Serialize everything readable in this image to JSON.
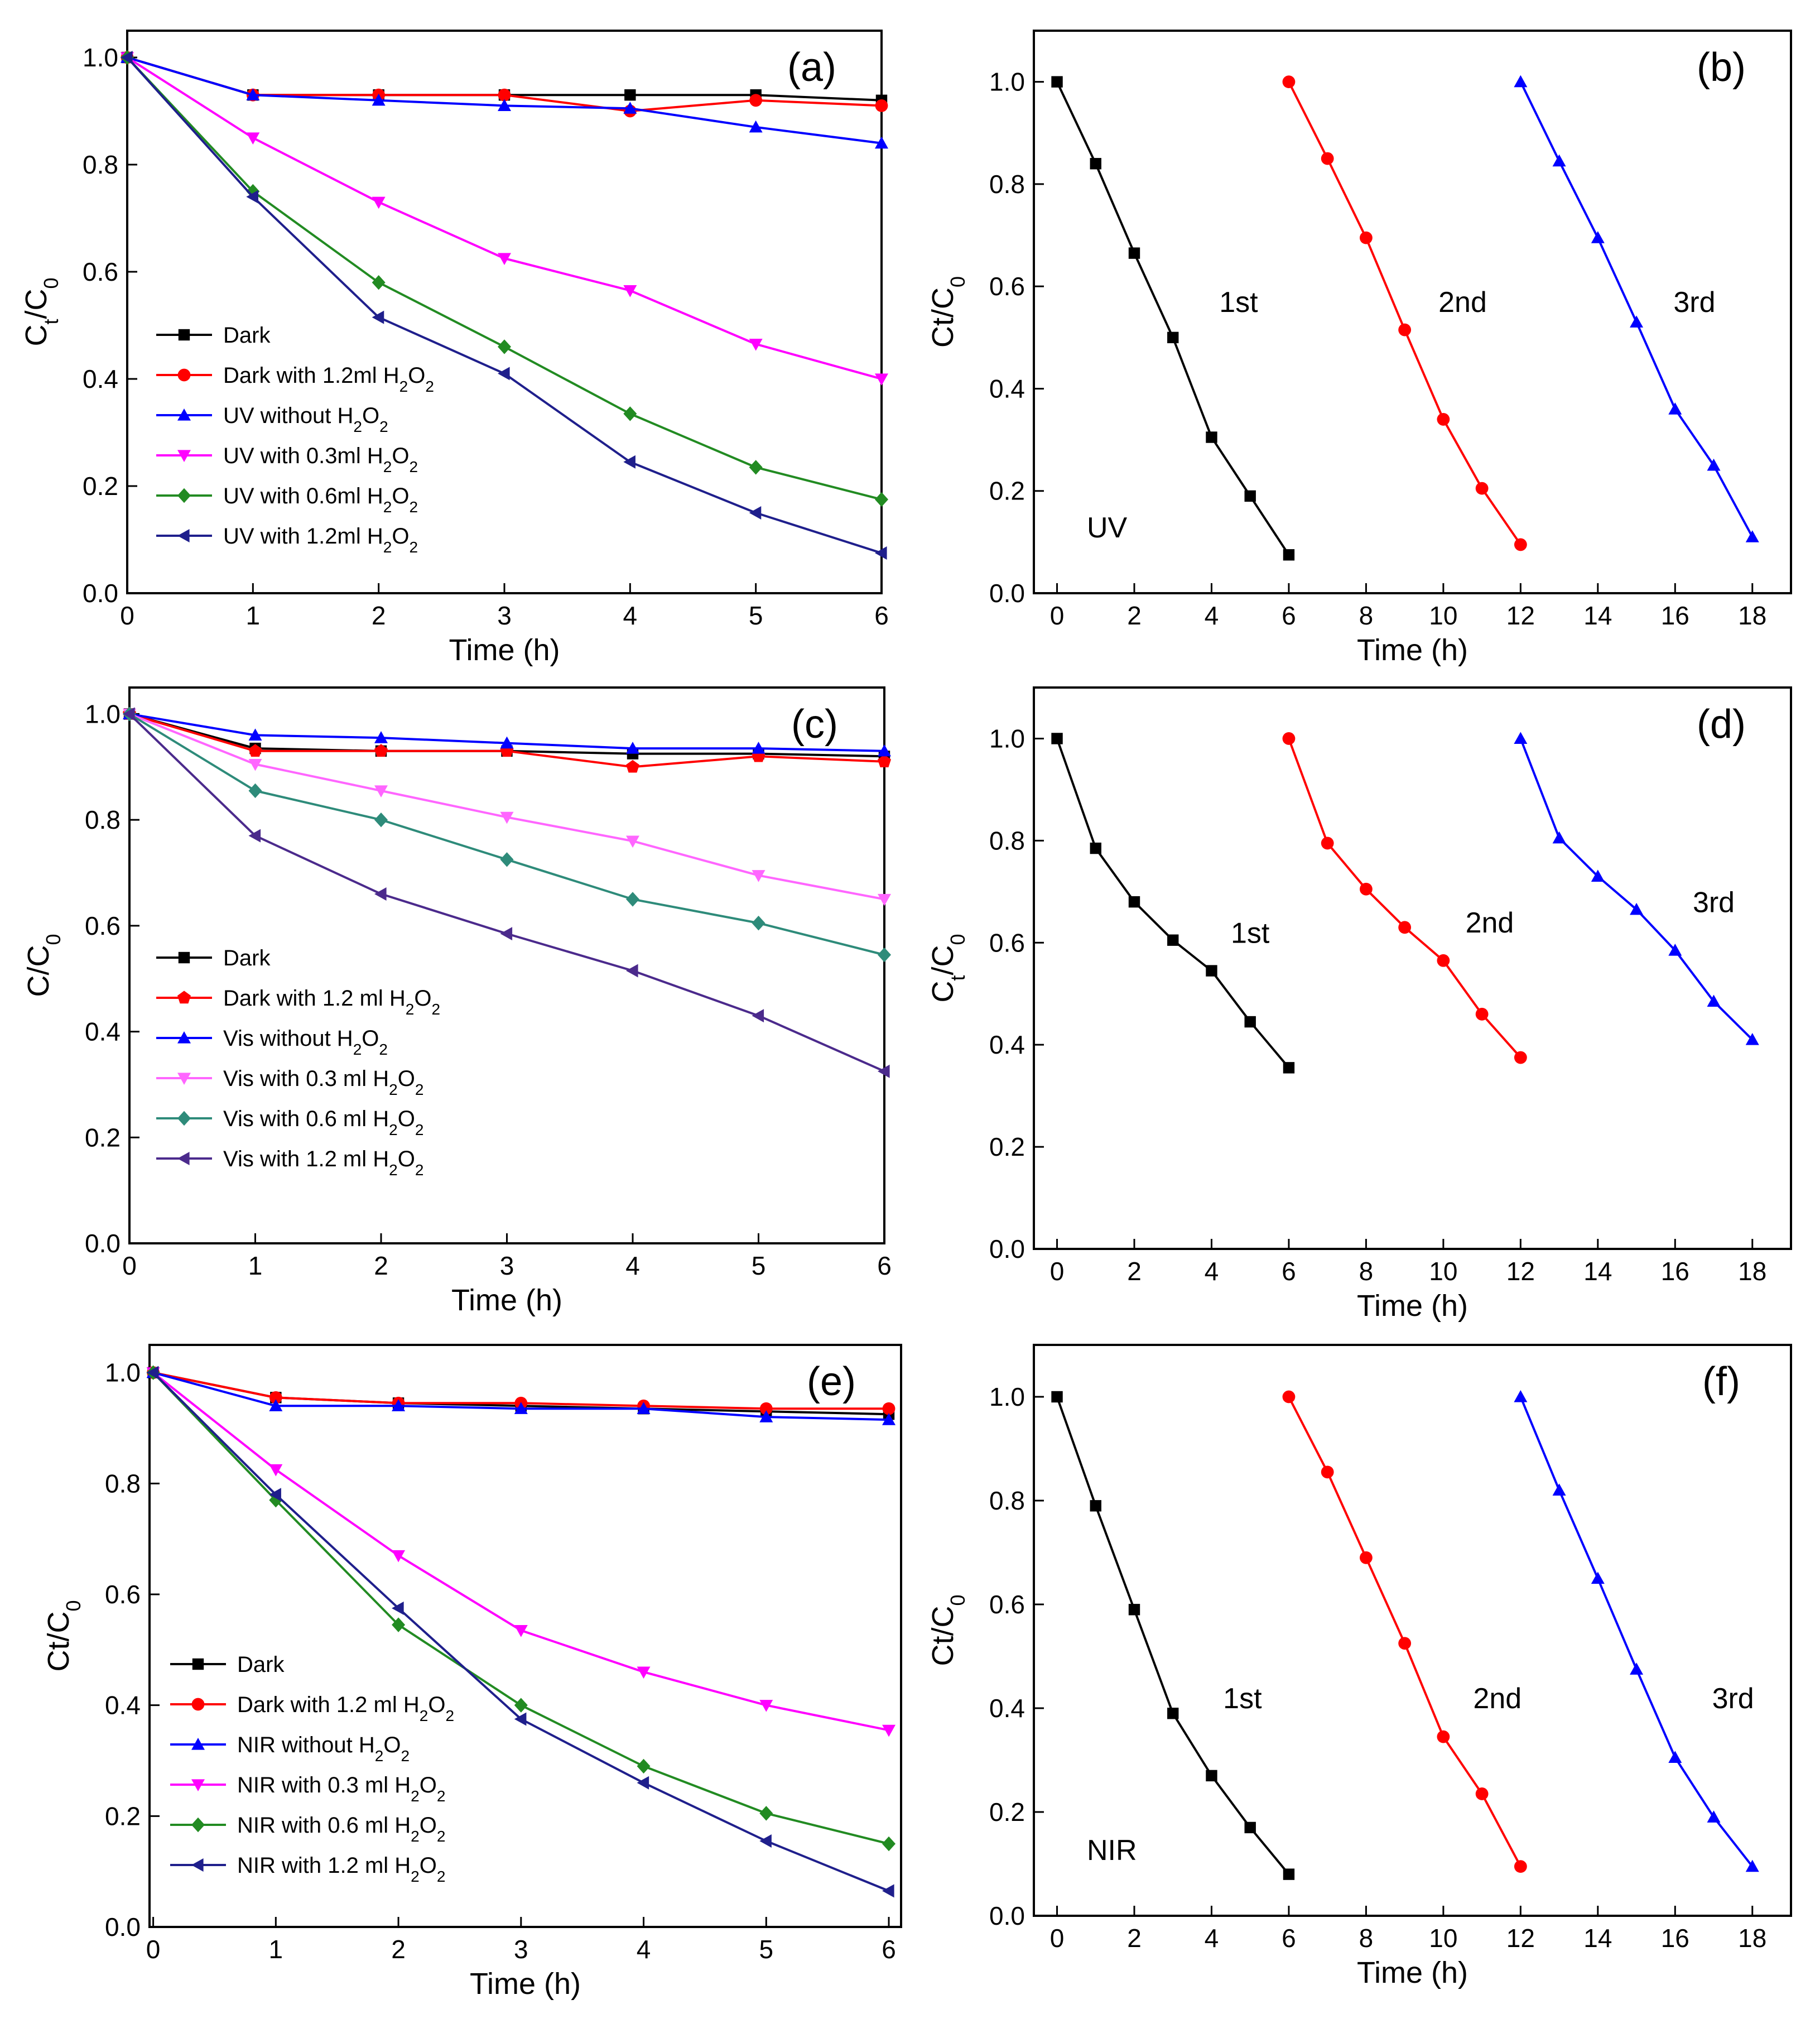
{
  "chart_data": [
    {
      "type": "line",
      "panel": "(a)",
      "xlabel": "Time (h)",
      "ylabel": {
        "main": "C",
        "sub1": "t",
        "sep": "/C",
        "sub2": "0"
      },
      "xlim": [
        0,
        6
      ],
      "ylim": [
        0,
        1.05
      ],
      "xticks": [
        0,
        1,
        2,
        3,
        4,
        5,
        6
      ],
      "yticks": [
        0.0,
        0.2,
        0.4,
        0.6,
        0.8,
        1.0
      ],
      "ytick_labels": [
        "0.0",
        "0.2",
        "0.4",
        "0.6",
        "0.8",
        "1.0"
      ],
      "legend": "lower-left",
      "series": [
        {
          "name": "Dark",
          "label": {
            "text": "Dark"
          },
          "color": "#000000",
          "marker": "square",
          "x": [
            0,
            1,
            2,
            3,
            4,
            5,
            6
          ],
          "values": [
            1.0,
            0.93,
            0.93,
            0.93,
            0.93,
            0.93,
            0.92
          ]
        },
        {
          "name": "Dark with 1.2ml H2O2",
          "label": {
            "text": "Dark with 1.2ml H",
            "s1": "2",
            "mid": "O",
            "s2": "2"
          },
          "color": "#ff0000",
          "marker": "circle",
          "x": [
            0,
            1,
            2,
            3,
            4,
            5,
            6
          ],
          "values": [
            1.0,
            0.93,
            0.93,
            0.93,
            0.9,
            0.92,
            0.91
          ]
        },
        {
          "name": "UV without H2O2",
          "label": {
            "text": "UV without H",
            "s1": "2",
            "mid": "O",
            "s2": "2"
          },
          "color": "#0000ff",
          "marker": "triangle-up",
          "x": [
            0,
            1,
            2,
            3,
            4,
            5,
            6
          ],
          "values": [
            1.0,
            0.93,
            0.92,
            0.91,
            0.905,
            0.87,
            0.84
          ]
        },
        {
          "name": "UV with 0.3ml H2O2",
          "label": {
            "text": "UV with 0.3ml H",
            "s1": "2",
            "mid": "O",
            "s2": "2"
          },
          "color": "#ff00ff",
          "marker": "triangle-down",
          "x": [
            0,
            1,
            2,
            3,
            4,
            5,
            6
          ],
          "values": [
            1.0,
            0.85,
            0.73,
            0.625,
            0.565,
            0.465,
            0.4
          ]
        },
        {
          "name": "UV with 0.6ml H2O2",
          "label": {
            "text": "UV with 0.6ml H",
            "s1": "2",
            "mid": "O",
            "s2": "2"
          },
          "color": "#228b22",
          "marker": "diamond",
          "x": [
            0,
            1,
            2,
            3,
            4,
            5,
            6
          ],
          "values": [
            1.0,
            0.75,
            0.58,
            0.46,
            0.335,
            0.235,
            0.175
          ]
        },
        {
          "name": "UV with 1.2ml H2O2",
          "label": {
            "text": "UV with 1.2ml H",
            "s1": "2",
            "mid": "O",
            "s2": "2"
          },
          "color": "#1f1f8c",
          "marker": "triangle-left",
          "x": [
            0,
            1,
            2,
            3,
            4,
            5,
            6
          ],
          "values": [
            1.0,
            0.74,
            0.515,
            0.41,
            0.245,
            0.15,
            0.075
          ]
        }
      ]
    },
    {
      "type": "line",
      "panel": "(b)",
      "xlabel": "Time (h)",
      "ylabel": {
        "main": "Ct/C",
        "sub1": "",
        "sep": "",
        "sub2": "0"
      },
      "xlim": [
        -0.6,
        19
      ],
      "ylim": [
        0,
        1.1
      ],
      "xticks": [
        0,
        2,
        4,
        6,
        8,
        10,
        12,
        14,
        16,
        18
      ],
      "yticks": [
        0.0,
        0.2,
        0.4,
        0.6,
        0.8,
        1.0
      ],
      "ytick_labels": [
        "0.0",
        "0.2",
        "0.4",
        "0.6",
        "0.8",
        "1.0"
      ],
      "condition_label": "UV",
      "annotations": [
        {
          "text": "1st",
          "x": 4.7,
          "y": 0.55
        },
        {
          "text": "2nd",
          "x": 10.5,
          "y": 0.55
        },
        {
          "text": "3rd",
          "x": 16.5,
          "y": 0.55
        }
      ],
      "series": [
        {
          "name": "1st",
          "color": "#000000",
          "marker": "square",
          "x": [
            0,
            1,
            2,
            3,
            4,
            5,
            6
          ],
          "values": [
            1.0,
            0.84,
            0.665,
            0.5,
            0.305,
            0.19,
            0.075
          ]
        },
        {
          "name": "2nd",
          "color": "#ff0000",
          "marker": "circle",
          "x": [
            6,
            7,
            8,
            9,
            10,
            11,
            12
          ],
          "values": [
            1.0,
            0.85,
            0.695,
            0.515,
            0.34,
            0.205,
            0.095
          ]
        },
        {
          "name": "3rd",
          "color": "#0000ff",
          "marker": "triangle-up",
          "x": [
            12,
            13,
            14,
            15,
            16,
            17,
            18
          ],
          "values": [
            1.0,
            0.845,
            0.695,
            0.53,
            0.36,
            0.25,
            0.11
          ]
        }
      ]
    },
    {
      "type": "line",
      "panel": "(c)",
      "xlabel": "Time (h)",
      "ylabel": {
        "main": "C/C",
        "sub1": "",
        "sep": "",
        "sub2": "0"
      },
      "xlim": [
        0,
        6
      ],
      "ylim": [
        0,
        1.05
      ],
      "xticks": [
        0,
        1,
        2,
        3,
        4,
        5,
        6
      ],
      "yticks": [
        0.0,
        0.2,
        0.4,
        0.6,
        0.8,
        1.0
      ],
      "ytick_labels": [
        "0.0",
        "0.2",
        "0.4",
        "0.6",
        "0.8",
        "1.0"
      ],
      "legend": "lower-left",
      "series": [
        {
          "name": "Dark",
          "label": {
            "text": "Dark"
          },
          "color": "#000000",
          "marker": "square",
          "x": [
            0,
            1,
            2,
            3,
            4,
            5,
            6
          ],
          "values": [
            1.0,
            0.935,
            0.93,
            0.93,
            0.925,
            0.925,
            0.92
          ]
        },
        {
          "name": "Dark with 1.2 ml H2O2",
          "label": {
            "text": "Dark with 1.2 ml H",
            "s1": "2",
            "mid": "O",
            "s2": "2"
          },
          "color": "#ff0000",
          "marker": "pentagon",
          "x": [
            0,
            1,
            2,
            3,
            4,
            5,
            6
          ],
          "values": [
            1.0,
            0.93,
            0.93,
            0.93,
            0.9,
            0.92,
            0.91
          ]
        },
        {
          "name": "Vis without H2O2",
          "label": {
            "text": "Vis without H",
            "s1": "2",
            "mid": "O",
            "s2": "2"
          },
          "color": "#0000ff",
          "marker": "triangle-up",
          "x": [
            0,
            1,
            2,
            3,
            4,
            5,
            6
          ],
          "values": [
            1.0,
            0.96,
            0.955,
            0.945,
            0.935,
            0.935,
            0.93
          ]
        },
        {
          "name": "Vis with 0.3 ml H2O2",
          "label": {
            "text": "Vis with 0.3 ml H",
            "s1": "2",
            "mid": "O",
            "s2": "2"
          },
          "color": "#ff66ff",
          "marker": "triangle-down",
          "x": [
            0,
            1,
            2,
            3,
            4,
            5,
            6
          ],
          "values": [
            1.0,
            0.905,
            0.855,
            0.805,
            0.76,
            0.695,
            0.65
          ]
        },
        {
          "name": "Vis with 0.6 ml H2O2",
          "label": {
            "text": "Vis with 0.6 ml H",
            "s1": "2",
            "mid": "O",
            "s2": "2"
          },
          "color": "#2e8b7a",
          "marker": "diamond",
          "x": [
            0,
            1,
            2,
            3,
            4,
            5,
            6
          ],
          "values": [
            1.0,
            0.855,
            0.8,
            0.725,
            0.65,
            0.605,
            0.545
          ]
        },
        {
          "name": "Vis with 1.2 ml H2O2",
          "label": {
            "text": "Vis with 1.2 ml H",
            "s1": "2",
            "mid": "O",
            "s2": "2"
          },
          "color": "#4b2a8c",
          "marker": "triangle-left",
          "x": [
            0,
            1,
            2,
            3,
            4,
            5,
            6
          ],
          "values": [
            1.0,
            0.77,
            0.66,
            0.585,
            0.515,
            0.43,
            0.325
          ]
        }
      ]
    },
    {
      "type": "line",
      "panel": "(d)",
      "xlabel": "Time (h)",
      "ylabel": {
        "main": "C",
        "sub1": "t",
        "sep": "/C",
        "sub2": "0"
      },
      "xlim": [
        -0.6,
        19
      ],
      "ylim": [
        0,
        1.1
      ],
      "xticks": [
        0,
        2,
        4,
        6,
        8,
        10,
        12,
        14,
        16,
        18
      ],
      "yticks": [
        0.0,
        0.2,
        0.4,
        0.6,
        0.8,
        1.0
      ],
      "ytick_labels": [
        "0.0",
        "0.2",
        "0.4",
        "0.6",
        "0.8",
        "1.0"
      ],
      "annotations": [
        {
          "text": "1st",
          "x": 5.0,
          "y": 0.6
        },
        {
          "text": "2nd",
          "x": 11.2,
          "y": 0.62
        },
        {
          "text": "3rd",
          "x": 17.0,
          "y": 0.66
        }
      ],
      "series": [
        {
          "name": "1st",
          "color": "#000000",
          "marker": "square",
          "x": [
            0,
            1,
            2,
            3,
            4,
            5,
            6
          ],
          "values": [
            1.0,
            0.785,
            0.68,
            0.605,
            0.545,
            0.445,
            0.355
          ]
        },
        {
          "name": "2nd",
          "color": "#ff0000",
          "marker": "circle",
          "x": [
            6,
            7,
            8,
            9,
            10,
            11,
            12
          ],
          "values": [
            1.0,
            0.795,
            0.705,
            0.63,
            0.565,
            0.46,
            0.375
          ]
        },
        {
          "name": "3rd",
          "color": "#0000ff",
          "marker": "triangle-up",
          "x": [
            12,
            13,
            14,
            15,
            16,
            17,
            18
          ],
          "values": [
            1.0,
            0.805,
            0.73,
            0.665,
            0.585,
            0.485,
            0.41
          ]
        }
      ]
    },
    {
      "type": "line",
      "panel": "(e)",
      "xlabel": "Time (h)",
      "ylabel": {
        "main": "Ct/C",
        "sub1": "",
        "sep": "",
        "sub2": "0"
      },
      "xlim": [
        -0.03,
        6.1
      ],
      "ylim": [
        0,
        1.05
      ],
      "xticks": [
        0,
        1,
        2,
        3,
        4,
        5,
        6
      ],
      "yticks": [
        0.0,
        0.2,
        0.4,
        0.6,
        0.8,
        1.0
      ],
      "ytick_labels": [
        "0.0",
        "0.2",
        "0.4",
        "0.6",
        "0.8",
        "1.0"
      ],
      "legend": "lower-left",
      "series": [
        {
          "name": "Dark",
          "label": {
            "text": "Dark"
          },
          "color": "#000000",
          "marker": "square",
          "x": [
            0,
            1,
            2,
            3,
            4,
            5,
            6
          ],
          "values": [
            1.0,
            0.955,
            0.945,
            0.94,
            0.935,
            0.93,
            0.925
          ]
        },
        {
          "name": "Dark with 1.2 ml H2O2",
          "label": {
            "text": "Dark with 1.2 ml H",
            "s1": "2",
            "mid": "O",
            "s2": "2"
          },
          "color": "#ff0000",
          "marker": "circle",
          "x": [
            0,
            1,
            2,
            3,
            4,
            5,
            6
          ],
          "values": [
            1.0,
            0.955,
            0.945,
            0.945,
            0.94,
            0.935,
            0.935
          ]
        },
        {
          "name": "NIR without H2O2",
          "label": {
            "text": "NIR without H",
            "s1": "2",
            "mid": "O",
            "s2": "2"
          },
          "color": "#0000ff",
          "marker": "triangle-up",
          "x": [
            0,
            1,
            2,
            3,
            4,
            5,
            6
          ],
          "values": [
            1.0,
            0.94,
            0.94,
            0.935,
            0.935,
            0.92,
            0.915
          ]
        },
        {
          "name": "NIR with 0.3 ml H2O2",
          "label": {
            "text": "NIR with 0.3 ml H",
            "s1": "2",
            "mid": "O",
            "s2": "2"
          },
          "color": "#ff00ff",
          "marker": "triangle-down",
          "x": [
            0,
            1,
            2,
            3,
            4,
            5,
            6
          ],
          "values": [
            1.0,
            0.825,
            0.67,
            0.535,
            0.46,
            0.4,
            0.355
          ]
        },
        {
          "name": "NIR with 0.6 ml H2O2",
          "label": {
            "text": "NIR with 0.6 ml H",
            "s1": "2",
            "mid": "O",
            "s2": "2"
          },
          "color": "#228b22",
          "marker": "diamond",
          "x": [
            0,
            1,
            2,
            3,
            4,
            5,
            6
          ],
          "values": [
            1.0,
            0.77,
            0.545,
            0.4,
            0.29,
            0.205,
            0.15
          ]
        },
        {
          "name": "NIR with 1.2 ml H2O2",
          "label": {
            "text": "NIR with 1.2 ml H",
            "s1": "2",
            "mid": "O",
            "s2": "2"
          },
          "color": "#1f1f8c",
          "marker": "triangle-left",
          "x": [
            0,
            1,
            2,
            3,
            4,
            5,
            6
          ],
          "values": [
            1.0,
            0.78,
            0.575,
            0.375,
            0.26,
            0.155,
            0.065
          ]
        }
      ]
    },
    {
      "type": "line",
      "panel": "(f)",
      "xlabel": "Time (h)",
      "ylabel": {
        "main": "Ct/C",
        "sub1": "",
        "sep": "",
        "sub2": "0"
      },
      "xlim": [
        -0.6,
        19
      ],
      "ylim": [
        0,
        1.1
      ],
      "xticks": [
        0,
        2,
        4,
        6,
        8,
        10,
        12,
        14,
        16,
        18
      ],
      "yticks": [
        0.0,
        0.2,
        0.4,
        0.6,
        0.8,
        1.0
      ],
      "ytick_labels": [
        "0.0",
        "0.2",
        "0.4",
        "0.6",
        "0.8",
        "1.0"
      ],
      "condition_label": "NIR",
      "annotations": [
        {
          "text": "1st",
          "x": 4.8,
          "y": 0.4
        },
        {
          "text": "2nd",
          "x": 11.4,
          "y": 0.4
        },
        {
          "text": "3rd",
          "x": 17.5,
          "y": 0.4
        }
      ],
      "series": [
        {
          "name": "1st",
          "color": "#000000",
          "marker": "square",
          "x": [
            0,
            1,
            2,
            3,
            4,
            5,
            6
          ],
          "values": [
            1.0,
            0.79,
            0.59,
            0.39,
            0.27,
            0.17,
            0.08
          ]
        },
        {
          "name": "2nd",
          "color": "#ff0000",
          "marker": "circle",
          "x": [
            6,
            7,
            8,
            9,
            10,
            11,
            12
          ],
          "values": [
            1.0,
            0.855,
            0.69,
            0.525,
            0.345,
            0.235,
            0.095
          ]
        },
        {
          "name": "3rd",
          "color": "#0000ff",
          "marker": "triangle-up",
          "x": [
            12,
            13,
            14,
            15,
            16,
            17,
            18
          ],
          "values": [
            1.0,
            0.82,
            0.65,
            0.475,
            0.305,
            0.19,
            0.095
          ]
        }
      ]
    }
  ]
}
